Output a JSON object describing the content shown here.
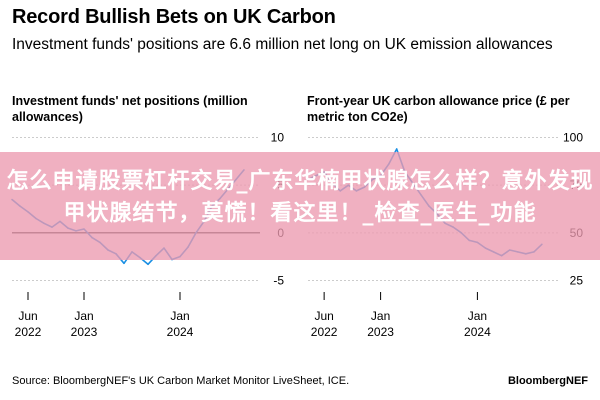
{
  "header": {
    "title": "Record Bullish Bets on UK Carbon",
    "subtitle": "Investment funds' positions are 6.6 million net long on UK emission allowances"
  },
  "footer": {
    "source": "Source: BloombergNEF's UK Carbon Market Monitor LiveSheet, ICE.",
    "brand": "BloombergNEF"
  },
  "overlay": {
    "text": "怎么申请股票杠杆交易_广东华楠甲状腺怎么样？意外发现甲状腺结节，莫慌！看这里！_检查_医生_功能",
    "color": "#ec9ab0"
  },
  "colors": {
    "line": "#1a8fe3",
    "grid": "#cccccc",
    "zero": "#000000"
  },
  "chart_data": [
    {
      "type": "line",
      "title": "Investment funds' net positions (million allowances)",
      "x_tick_labels": [
        [
          "Jun",
          "2022"
        ],
        [
          "Jan",
          "2023"
        ],
        [
          "Jan",
          "2024"
        ]
      ],
      "x_tick_dates": [
        "2022-06",
        "2023-01",
        "2024-01"
      ],
      "xlim": [
        "2022-04",
        "2024-10"
      ],
      "y_ticks": [
        -5,
        0,
        5,
        10
      ],
      "ylim": [
        -6,
        11
      ],
      "y_axis_side": "right",
      "grid": true,
      "series": [
        {
          "x": [
            "2022-04",
            "2022-05",
            "2022-06",
            "2022-07",
            "2022-08",
            "2022-09",
            "2022-10",
            "2022-11",
            "2022-12",
            "2023-01",
            "2023-02",
            "2023-03",
            "2023-04",
            "2023-05",
            "2023-06",
            "2023-07",
            "2023-08",
            "2023-09",
            "2023-10",
            "2023-11",
            "2023-12",
            "2024-01",
            "2024-02",
            "2024-03",
            "2024-04",
            "2024-05",
            "2024-06",
            "2024-07",
            "2024-08",
            "2024-09"
          ],
          "y": [
            3.5,
            2.8,
            2.2,
            1.5,
            1.0,
            0.6,
            1.2,
            0.5,
            0.2,
            0.4,
            -0.5,
            -1.0,
            -1.8,
            -2.2,
            -3.2,
            -2.0,
            -2.6,
            -3.3,
            -2.4,
            -1.6,
            -2.8,
            -2.5,
            -1.5,
            0.0,
            1.2,
            2.8,
            3.6,
            4.6,
            5.6,
            6.6
          ]
        }
      ]
    },
    {
      "type": "line",
      "title": "Front-year UK carbon allowance price (£ per metric ton CO2e)",
      "x_tick_labels": [
        [
          "Jun",
          "2022"
        ],
        [
          "Jan",
          "2023"
        ],
        [
          "Jan",
          "2024"
        ]
      ],
      "x_tick_dates": [
        "2022-06",
        "2023-01",
        "2024-01"
      ],
      "xlim": [
        "2022-04",
        "2024-10"
      ],
      "y_ticks": [
        25,
        50,
        75,
        100
      ],
      "ylim": [
        20,
        105
      ],
      "y_axis_side": "right",
      "grid": true,
      "series": [
        {
          "x": [
            "2022-04",
            "2022-05",
            "2022-06",
            "2022-07",
            "2022-08",
            "2022-09",
            "2022-10",
            "2022-11",
            "2022-12",
            "2023-01",
            "2023-02",
            "2023-03",
            "2023-04",
            "2023-05",
            "2023-06",
            "2023-07",
            "2023-08",
            "2023-09",
            "2023-10",
            "2023-11",
            "2023-12",
            "2024-01",
            "2024-02",
            "2024-03",
            "2024-04",
            "2024-05",
            "2024-06",
            "2024-07",
            "2024-08",
            "2024-09"
          ],
          "y": [
            78,
            80,
            82,
            76,
            72,
            75,
            72,
            74,
            78,
            80,
            86,
            94,
            82,
            76,
            70,
            64,
            60,
            55,
            53,
            50,
            46,
            45,
            42,
            40,
            38,
            41,
            40,
            39,
            40,
            44
          ]
        }
      ]
    }
  ]
}
